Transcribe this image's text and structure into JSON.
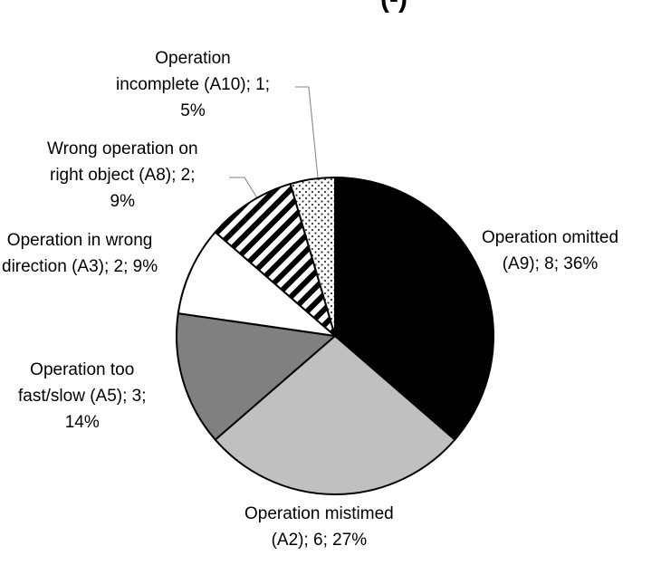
{
  "chart_data": {
    "type": "pie",
    "title_fragment": "(-)",
    "slices": [
      {
        "code": "A9",
        "value": 8,
        "percent": 36,
        "fill": "solid",
        "color": "#000000",
        "label_lines": [
          "Operation omitted",
          "(A9); 8; 36%"
        ]
      },
      {
        "code": "A2",
        "value": 6,
        "percent": 27,
        "fill": "solid",
        "color": "#c0c0c0",
        "label_lines": [
          "Operation mistimed",
          "(A2); 6; 27%"
        ]
      },
      {
        "code": "A5",
        "value": 3,
        "percent": 14,
        "fill": "solid",
        "color": "#808080",
        "label_lines": [
          "Operation too",
          "fast/slow (A5); 3;",
          "14%"
        ]
      },
      {
        "code": "A3",
        "value": 2,
        "percent": 9,
        "fill": "solid",
        "color": "#ffffff",
        "label_lines": [
          "Operation in wrong",
          "direction (A3); 2; 9%"
        ]
      },
      {
        "code": "A8",
        "value": 2,
        "percent": 9,
        "fill": "diagonal-stripes",
        "color": "#000000",
        "label_lines": [
          "Wrong operation on",
          "right object (A8); 2;",
          "9%"
        ]
      },
      {
        "code": "A10",
        "value": 1,
        "percent": 5,
        "fill": "dots",
        "color": "#ffffff",
        "label_lines": [
          "Operation",
          "incomplete (A10); 1;",
          "5%"
        ]
      }
    ]
  }
}
